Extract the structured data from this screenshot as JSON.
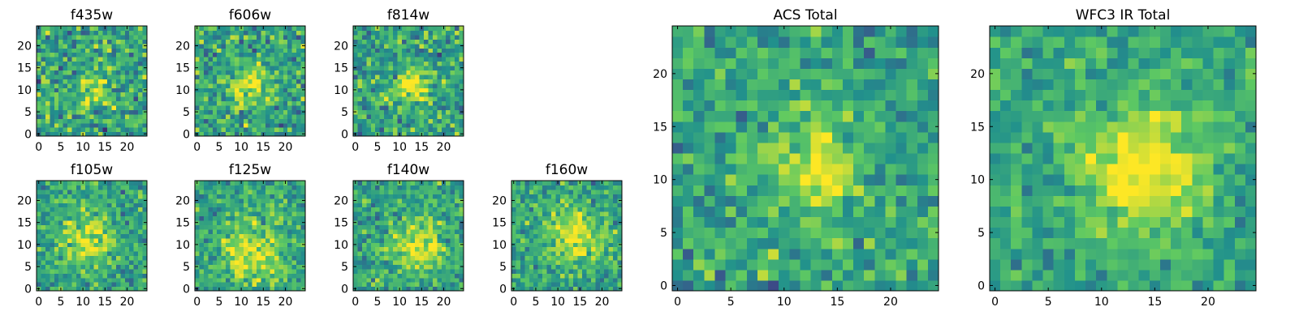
{
  "figure": {
    "colormap": "viridis",
    "colors": [
      "#440154",
      "#3b528b",
      "#21918c",
      "#5ec962",
      "#fde725"
    ]
  },
  "chart_data": [
    {
      "type": "heatmap",
      "title": "f435w",
      "xlim": [
        0,
        25
      ],
      "ylim": [
        0,
        25
      ],
      "xticks": [
        0,
        5,
        10,
        15,
        20
      ],
      "yticks": [
        0,
        5,
        10,
        15,
        20
      ],
      "grid": false,
      "center": [
        13,
        11
      ],
      "peak": 0.25,
      "sigma": 3.0,
      "noise": 0.6,
      "seed": 11
    },
    {
      "type": "heatmap",
      "title": "f606w",
      "xlim": [
        0,
        25
      ],
      "ylim": [
        0,
        25
      ],
      "xticks": [
        0,
        5,
        10,
        15,
        20
      ],
      "yticks": [
        0,
        5,
        10,
        15,
        20
      ],
      "grid": false,
      "center": [
        12,
        11
      ],
      "peak": 0.35,
      "sigma": 3.2,
      "noise": 0.55,
      "seed": 23
    },
    {
      "type": "heatmap",
      "title": "f814w",
      "xlim": [
        0,
        25
      ],
      "ylim": [
        0,
        25
      ],
      "xticks": [
        0,
        5,
        10,
        15,
        20
      ],
      "yticks": [
        0,
        5,
        10,
        15,
        20
      ],
      "grid": false,
      "center": [
        13,
        11
      ],
      "peak": 0.45,
      "sigma": 2.6,
      "noise": 0.55,
      "seed": 37
    },
    {
      "type": "heatmap",
      "title": "f105w",
      "xlim": [
        0,
        25
      ],
      "ylim": [
        0,
        25
      ],
      "xticks": [
        0,
        5,
        10,
        15,
        20
      ],
      "yticks": [
        0,
        5,
        10,
        15,
        20
      ],
      "grid": false,
      "center": [
        11,
        11
      ],
      "peak": 0.35,
      "sigma": 4.0,
      "noise": 0.45,
      "seed": 41
    },
    {
      "type": "heatmap",
      "title": "f125w",
      "xlim": [
        0,
        25
      ],
      "ylim": [
        0,
        25
      ],
      "xticks": [
        0,
        5,
        10,
        15,
        20
      ],
      "yticks": [
        0,
        5,
        10,
        15,
        20
      ],
      "grid": false,
      "center": [
        12,
        8
      ],
      "peak": 0.35,
      "sigma": 5.0,
      "noise": 0.45,
      "seed": 53
    },
    {
      "type": "heatmap",
      "title": "f140w",
      "xlim": [
        0,
        25
      ],
      "ylim": [
        0,
        25
      ],
      "xticks": [
        0,
        5,
        10,
        15,
        20
      ],
      "yticks": [
        0,
        5,
        10,
        15,
        20
      ],
      "grid": false,
      "center": [
        14,
        10
      ],
      "peak": 0.35,
      "sigma": 4.5,
      "noise": 0.45,
      "seed": 67
    },
    {
      "type": "heatmap",
      "title": "f160w",
      "xlim": [
        0,
        25
      ],
      "ylim": [
        0,
        25
      ],
      "xticks": [
        0,
        5,
        10,
        15,
        20
      ],
      "yticks": [
        0,
        5,
        10,
        15,
        20
      ],
      "grid": false,
      "center": [
        14,
        12
      ],
      "peak": 0.35,
      "sigma": 4.5,
      "noise": 0.45,
      "seed": 79
    },
    {
      "type": "heatmap",
      "title": "ACS Total",
      "xlim": [
        0,
        25
      ],
      "ylim": [
        0,
        25
      ],
      "xticks": [
        0,
        5,
        10,
        15,
        20
      ],
      "yticks": [
        0,
        5,
        10,
        15,
        20
      ],
      "grid": false,
      "center": [
        13,
        11
      ],
      "peak": 0.4,
      "sigma": 2.8,
      "noise": 0.45,
      "seed": 97
    },
    {
      "type": "heatmap",
      "title": "WFC3 IR Total",
      "xlim": [
        0,
        25
      ],
      "ylim": [
        0,
        25
      ],
      "xticks": [
        0,
        5,
        10,
        15,
        20
      ],
      "yticks": [
        0,
        5,
        10,
        15,
        20
      ],
      "grid": false,
      "center": [
        14,
        11
      ],
      "peak": 0.45,
      "sigma": 4.2,
      "noise": 0.35,
      "seed": 131
    }
  ]
}
